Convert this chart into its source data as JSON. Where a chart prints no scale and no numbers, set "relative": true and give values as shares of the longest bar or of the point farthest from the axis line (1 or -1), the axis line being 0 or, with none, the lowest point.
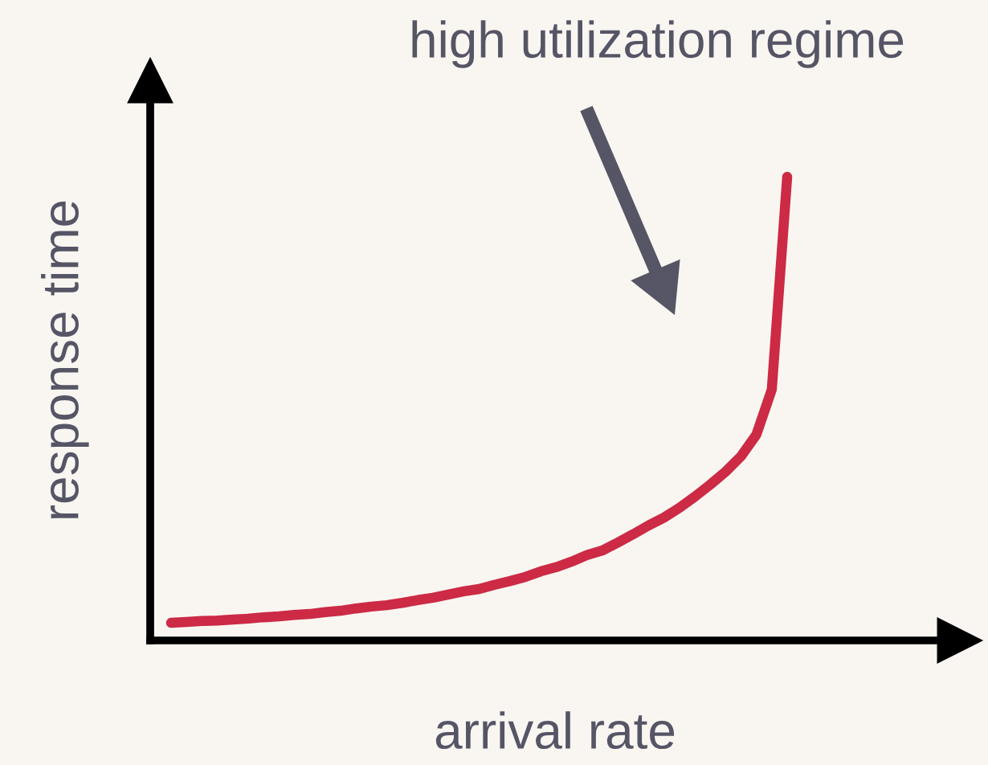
{
  "chart_data": {
    "type": "line",
    "relative": true,
    "xlabel": "arrival rate",
    "ylabel": "response time",
    "annotations": [
      "high utilization regime"
    ],
    "line_style": "solid",
    "categories": [
      null,
      null,
      null,
      null,
      null,
      null,
      null,
      null,
      null,
      null,
      null,
      null,
      null,
      null,
      null,
      null,
      null,
      null,
      null,
      null,
      null,
      null,
      null,
      null,
      null,
      null,
      null,
      null,
      null,
      null,
      null,
      null,
      null,
      null,
      null,
      null,
      null,
      null,
      null,
      null,
      null
    ],
    "series": [
      {
        "color": "#cc2a45",
        "values": [
          0.038,
          0.04,
          0.042,
          0.043,
          0.045,
          0.047,
          0.05,
          0.052,
          0.055,
          0.057,
          0.061,
          0.064,
          0.069,
          0.073,
          0.076,
          0.081,
          0.087,
          0.092,
          0.099,
          0.106,
          0.111,
          0.12,
          0.128,
          0.137,
          0.149,
          0.158,
          0.17,
          0.184,
          0.194,
          0.211,
          0.229,
          0.248,
          0.265,
          0.286,
          0.31,
          0.336,
          0.364,
          0.397,
          0.444,
          0.541,
          1.0
        ]
      }
    ]
  }
}
